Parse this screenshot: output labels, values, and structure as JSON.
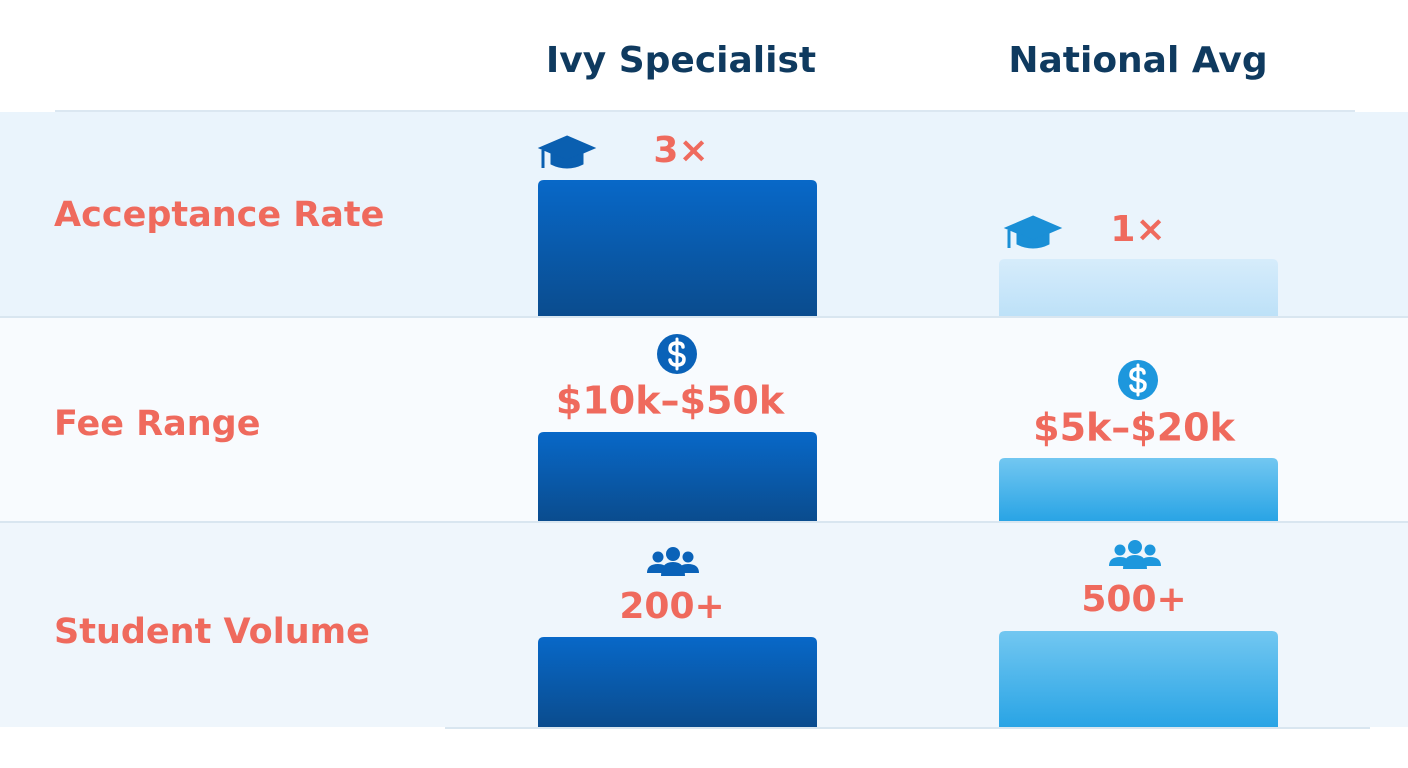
{
  "header": {
    "columns": [
      "Ivy Specialist",
      "National Avg"
    ]
  },
  "rows": [
    {
      "label": "Acceptance Rate",
      "cells": [
        "3×",
        "1×"
      ]
    },
    {
      "label": "Fee Range",
      "cells": [
        "$10k–$50k",
        "$5k–$20k"
      ]
    },
    {
      "label": "Student Volume",
      "cells": [
        "200+",
        "500+"
      ]
    }
  ]
}
